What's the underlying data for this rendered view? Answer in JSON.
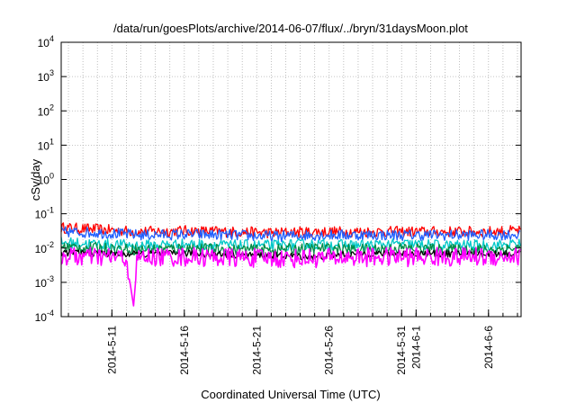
{
  "chart_data": {
    "type": "line",
    "title": "/data/run/goesPlots/archive/2014-06-07/flux/../bryn/31daysMoon.plot",
    "xlabel": "Coordinated Universal Time (UTC)",
    "ylabel": "cSv/day",
    "y_scale": "log",
    "ylim": [
      0.0001,
      10000
    ],
    "xlim": [
      "2014-05-07T12:00",
      "2014-06-08T06:00"
    ],
    "grid": true,
    "legend": "none",
    "x_ticks": [
      {
        "label": "2014-5-11",
        "date": "2014-05-11"
      },
      {
        "label": "2014-5-16",
        "date": "2014-05-16"
      },
      {
        "label": "2014-5-21",
        "date": "2014-05-21"
      },
      {
        "label": "2014-5-26",
        "date": "2014-05-26"
      },
      {
        "label": "2014-5-31",
        "date": "2014-05-31"
      },
      {
        "label": "2014-6-1",
        "date": "2014-06-01"
      },
      {
        "label": "2014-6-6",
        "date": "2014-06-06"
      }
    ],
    "y_ticks": [
      {
        "label": "10",
        "exp": "-4",
        "value": 0.0001
      },
      {
        "label": "10",
        "exp": "-3",
        "value": 0.001
      },
      {
        "label": "10",
        "exp": "-2",
        "value": 0.01
      },
      {
        "label": "10",
        "exp": "-1",
        "value": 0.1
      },
      {
        "label": "10",
        "exp": "0",
        "value": 1
      },
      {
        "label": "10",
        "exp": "1",
        "value": 10
      },
      {
        "label": "10",
        "exp": "2",
        "value": 100
      },
      {
        "label": "10",
        "exp": "3",
        "value": 1000
      },
      {
        "label": "10",
        "exp": "4",
        "value": 10000
      }
    ],
    "series": [
      {
        "color": "#ff0000",
        "x": [
          "2014-05-07",
          "2014-05-10",
          "2014-05-13",
          "2014-05-16",
          "2014-05-19",
          "2014-05-22",
          "2014-05-25",
          "2014-05-28",
          "2014-05-31",
          "2014-06-03",
          "2014-06-06",
          "2014-06-08"
        ],
        "values": [
          0.04,
          0.035,
          0.03,
          0.032,
          0.03,
          0.028,
          0.03,
          0.03,
          0.03,
          0.03,
          0.03,
          0.032
        ]
      },
      {
        "color": "#1f5fff",
        "x": [
          "2014-05-07",
          "2014-05-10",
          "2014-05-13",
          "2014-05-16",
          "2014-05-19",
          "2014-05-22",
          "2014-05-25",
          "2014-05-28",
          "2014-05-31",
          "2014-06-03",
          "2014-06-06",
          "2014-06-08"
        ],
        "values": [
          0.03,
          0.028,
          0.024,
          0.025,
          0.024,
          0.022,
          0.024,
          0.024,
          0.024,
          0.024,
          0.024,
          0.025
        ]
      },
      {
        "color": "#00c8c8",
        "x": [
          "2014-05-07",
          "2014-05-10",
          "2014-05-13",
          "2014-05-16",
          "2014-05-19",
          "2014-05-22",
          "2014-05-25",
          "2014-05-28",
          "2014-05-31",
          "2014-06-03",
          "2014-06-06",
          "2014-06-08"
        ],
        "values": [
          0.015,
          0.013,
          0.012,
          0.013,
          0.012,
          0.012,
          0.013,
          0.012,
          0.013,
          0.012,
          0.012,
          0.013
        ]
      },
      {
        "color": "#008b45",
        "x": [
          "2014-05-07",
          "2014-05-10",
          "2014-05-13",
          "2014-05-16",
          "2014-05-19",
          "2014-05-22",
          "2014-05-25",
          "2014-05-28",
          "2014-05-31",
          "2014-06-03",
          "2014-06-06",
          "2014-06-08"
        ],
        "values": [
          0.011,
          0.01,
          0.009,
          0.01,
          0.009,
          0.009,
          0.01,
          0.009,
          0.01,
          0.009,
          0.009,
          0.01
        ]
      },
      {
        "color": "#000000",
        "x": [
          "2014-05-07",
          "2014-05-10",
          "2014-05-13",
          "2014-05-16",
          "2014-05-19",
          "2014-05-22",
          "2014-05-25",
          "2014-05-28",
          "2014-05-31",
          "2014-06-03",
          "2014-06-06",
          "2014-06-08"
        ],
        "values": [
          0.0075,
          0.007,
          0.0065,
          0.007,
          0.0065,
          0.0062,
          0.0055,
          0.0068,
          0.007,
          0.0068,
          0.0068,
          0.007
        ]
      },
      {
        "color": "#ff00ff",
        "x": [
          "2014-05-07",
          "2014-05-09",
          "2014-05-11",
          "2014-05-12",
          "2014-05-12T12:00",
          "2014-05-12T18:00",
          "2014-05-14",
          "2014-05-17",
          "2014-05-20",
          "2014-05-23",
          "2014-05-26",
          "2014-05-29",
          "2014-06-01",
          "2014-06-04",
          "2014-06-08"
        ],
        "values": [
          0.006,
          0.0055,
          0.0055,
          0.005,
          0.0002,
          0.005,
          0.0055,
          0.0055,
          0.0052,
          0.005,
          0.0052,
          0.0055,
          0.0055,
          0.0055,
          0.0058
        ]
      }
    ]
  }
}
